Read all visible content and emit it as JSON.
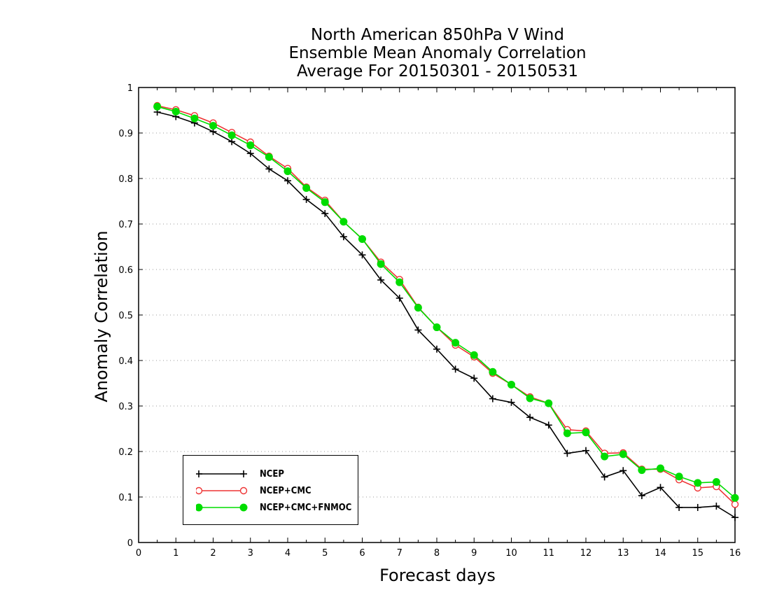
{
  "chart_data": {
    "type": "line",
    "title": [
      "North American 850hPa V Wind",
      "Ensemble Mean Anomaly Correlation",
      "Average For 20150301 - 20150531"
    ],
    "xlabel": "Forecast days",
    "ylabel": "Anomaly Correlation",
    "xlim": [
      0,
      16
    ],
    "ylim": [
      0,
      1
    ],
    "x_ticks": [
      "0",
      "1",
      "2",
      "3",
      "4",
      "5",
      "6",
      "7",
      "8",
      "9",
      "10",
      "11",
      "12",
      "13",
      "14",
      "15",
      "16"
    ],
    "y_ticks": [
      "0",
      "0.1",
      "0.2",
      "0.3",
      "0.4",
      "0.5",
      "0.6",
      "0.7",
      "0.8",
      "0.9",
      "1"
    ],
    "grid": "horizontal dotted",
    "legend_position": "bottom-left",
    "x": [
      0.5,
      1,
      1.5,
      2,
      2.5,
      3,
      3.5,
      4,
      4.5,
      5,
      5.5,
      6,
      6.5,
      7,
      7.5,
      8,
      8.5,
      9,
      9.5,
      10,
      10.5,
      11,
      11.5,
      12,
      12.5,
      13,
      13.5,
      14,
      14.5,
      15,
      15.5,
      16
    ],
    "series": [
      {
        "name": "NCEP",
        "color": "#000000",
        "marker": "plus",
        "values": [
          0.946,
          0.936,
          0.922,
          0.903,
          0.881,
          0.855,
          0.821,
          0.795,
          0.754,
          0.723,
          0.672,
          0.632,
          0.577,
          0.537,
          0.467,
          0.425,
          0.381,
          0.361,
          0.316,
          0.308,
          0.275,
          0.258,
          0.196,
          0.202,
          0.144,
          0.158,
          0.103,
          0.121,
          0.077,
          0.077,
          0.08,
          0.055
        ]
      },
      {
        "name": "NCEP+CMC",
        "color": "#ee3333",
        "marker": "open-circle",
        "values": [
          0.96,
          0.951,
          0.938,
          0.922,
          0.901,
          0.88,
          0.849,
          0.822,
          0.781,
          0.752,
          0.705,
          0.667,
          0.616,
          0.578,
          0.517,
          0.473,
          0.434,
          0.408,
          0.372,
          0.347,
          0.32,
          0.306,
          0.248,
          0.245,
          0.196,
          0.197,
          0.161,
          0.161,
          0.138,
          0.12,
          0.123,
          0.084
        ]
      },
      {
        "name": "NCEP+CMC+FNMOC",
        "color": "#00dd00",
        "marker": "filled-circle",
        "values": [
          0.958,
          0.947,
          0.932,
          0.916,
          0.895,
          0.873,
          0.847,
          0.816,
          0.779,
          0.748,
          0.705,
          0.667,
          0.612,
          0.572,
          0.516,
          0.473,
          0.439,
          0.412,
          0.375,
          0.347,
          0.317,
          0.306,
          0.24,
          0.242,
          0.189,
          0.194,
          0.159,
          0.163,
          0.145,
          0.131,
          0.133,
          0.098
        ]
      }
    ]
  }
}
